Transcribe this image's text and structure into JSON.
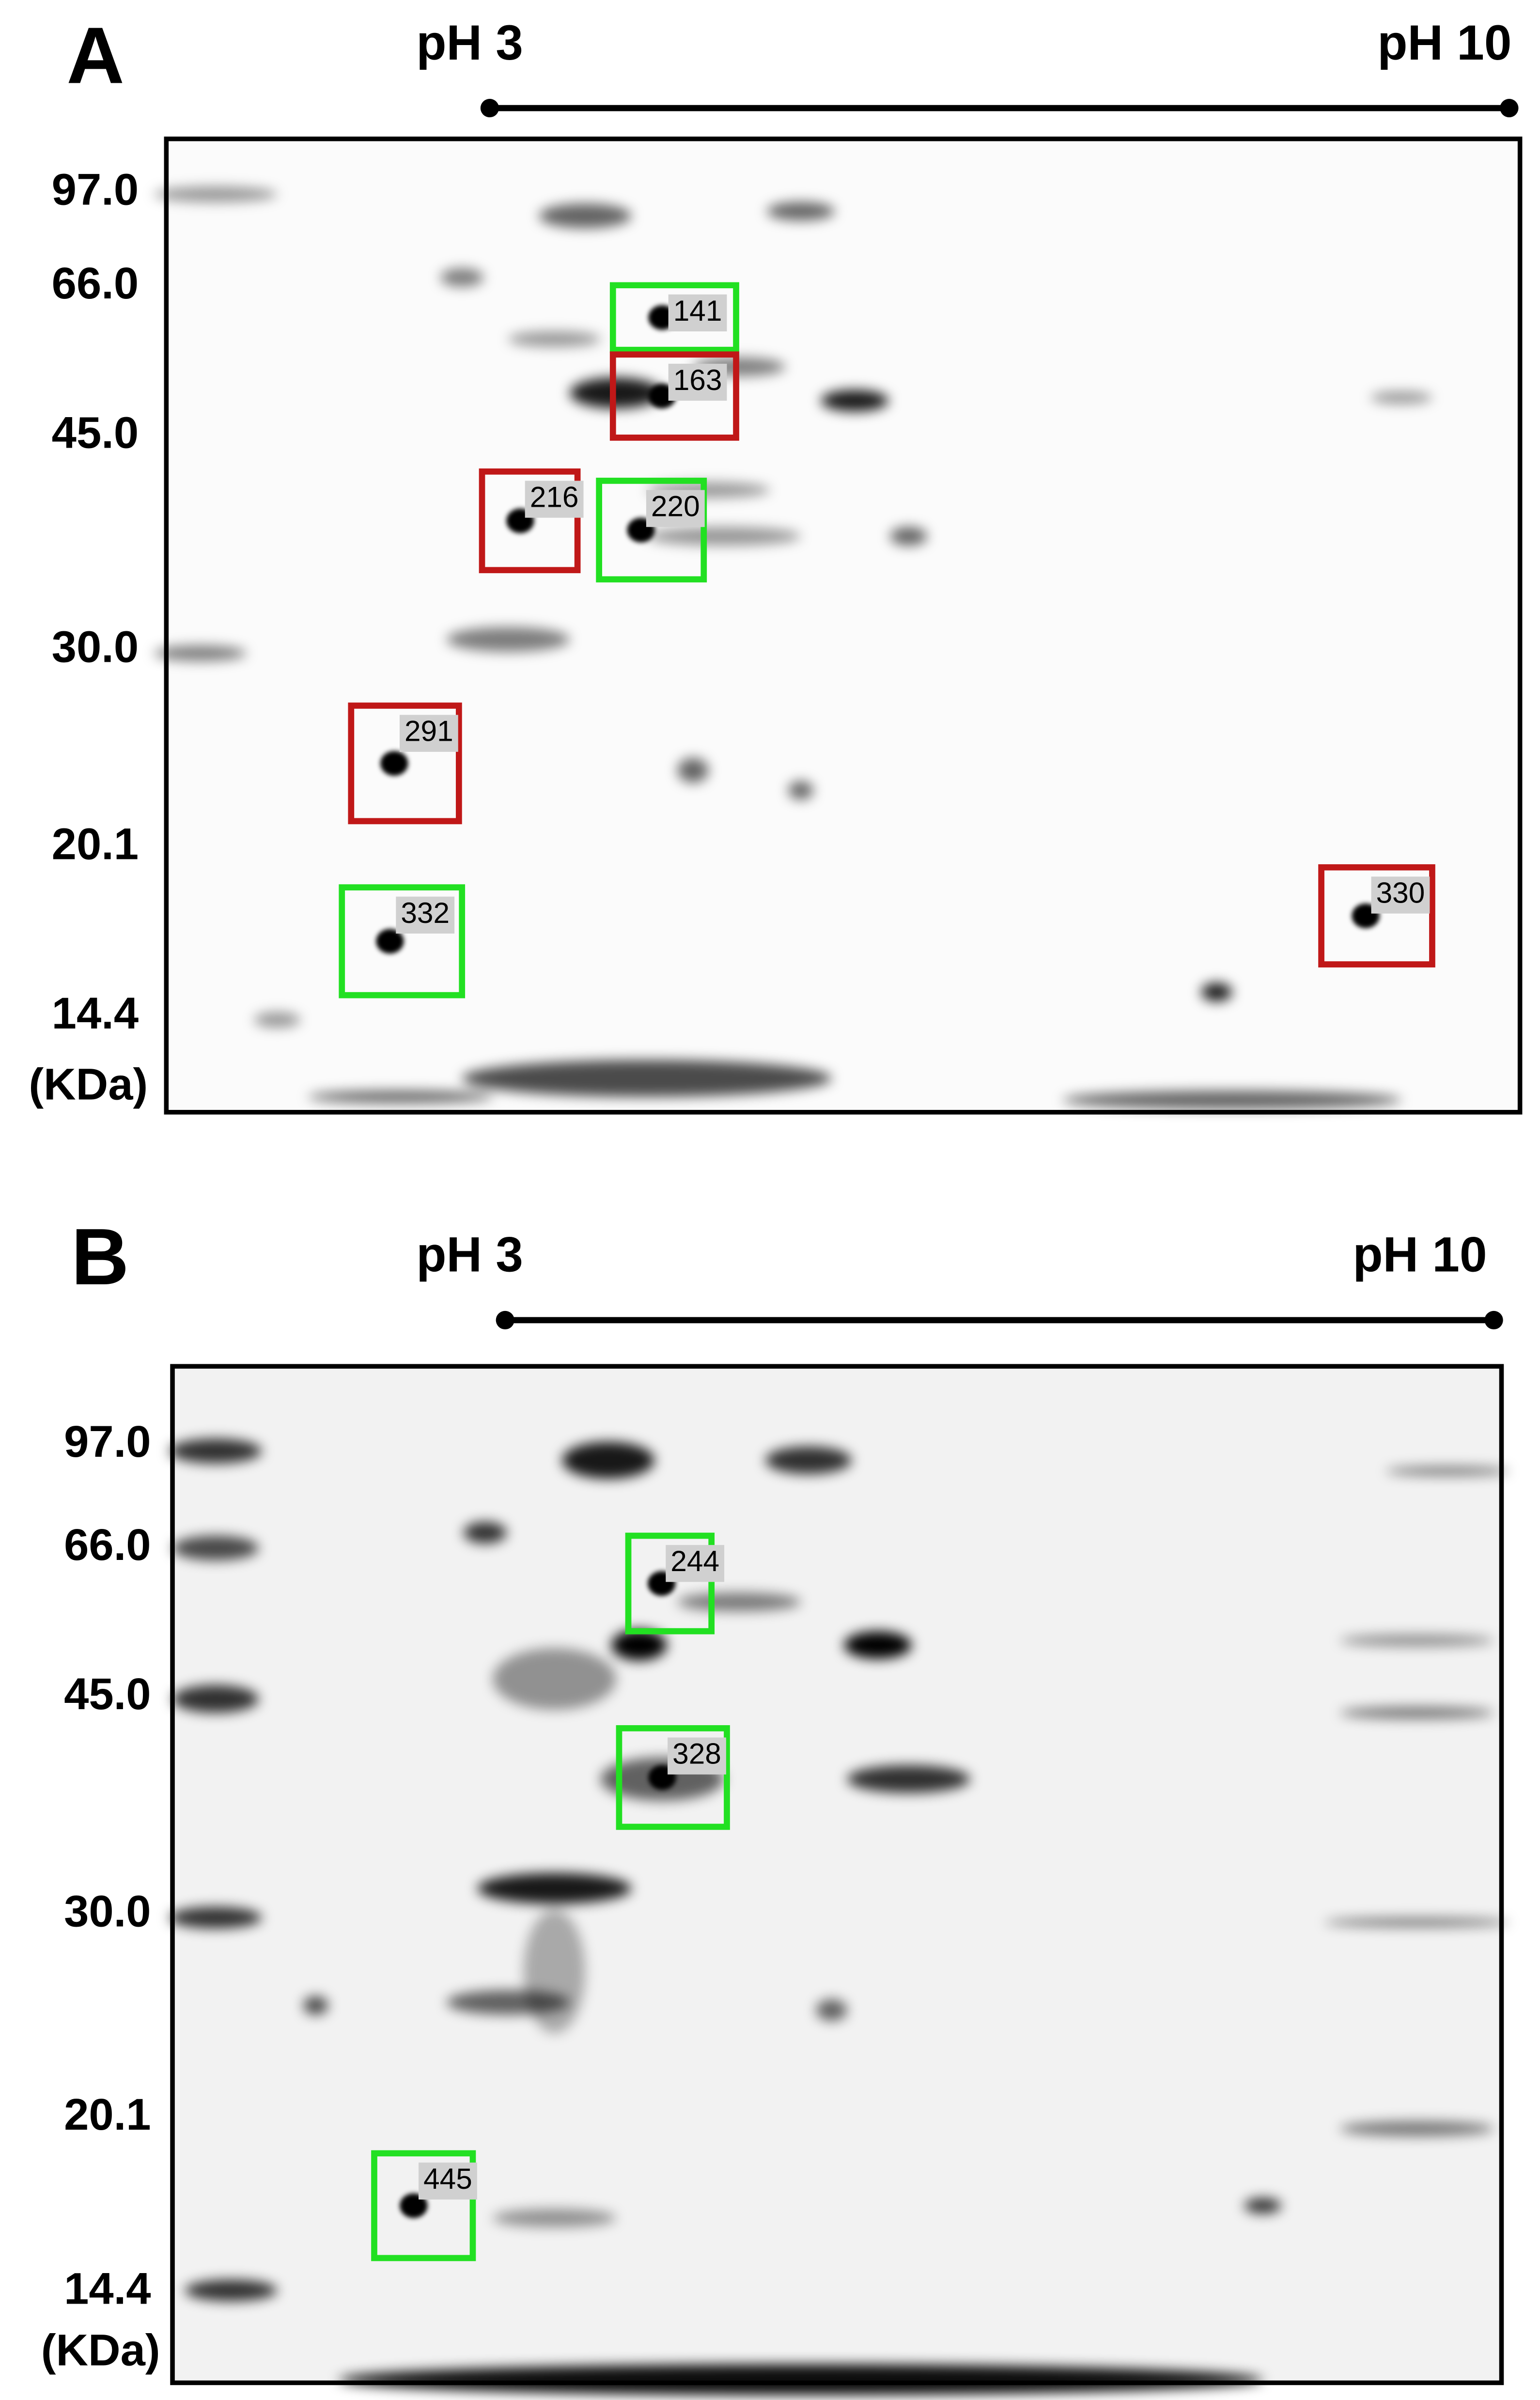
{
  "panels": [
    {
      "label": "A",
      "ph_start": "pH 3",
      "ph_end": "pH 10",
      "mw_labels": [
        "97.0",
        "66.0",
        "45.0",
        "30.0",
        "20.1",
        "14.4"
      ],
      "unit": "(KDa)",
      "spots": [
        {
          "label": "141",
          "color": "#22e022"
        },
        {
          "label": "163",
          "color": "#c01818"
        },
        {
          "label": "216",
          "color": "#c01818"
        },
        {
          "label": "220",
          "color": "#22e022"
        },
        {
          "label": "291",
          "color": "#c01818"
        },
        {
          "label": "332",
          "color": "#22e022"
        },
        {
          "label": "330",
          "color": "#c01818"
        }
      ]
    },
    {
      "label": "B",
      "ph_start": "pH 3",
      "ph_end": "pH 10",
      "mw_labels": [
        "97.0",
        "66.0",
        "45.0",
        "30.0",
        "20.1",
        "14.4"
      ],
      "unit": "(KDa)",
      "spots": [
        {
          "label": "244",
          "color": "#22e022"
        },
        {
          "label": "328",
          "color": "#22e022"
        },
        {
          "label": "445",
          "color": "#22e022"
        }
      ]
    }
  ]
}
